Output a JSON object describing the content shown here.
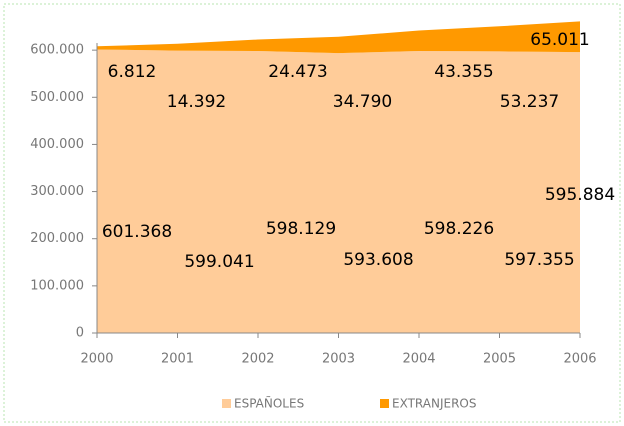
{
  "chart_data": {
    "type": "stacked_area",
    "x": [
      2000,
      2001,
      2002,
      2003,
      2004,
      2005,
      2006
    ],
    "xlim": [
      2000,
      2006
    ],
    "xticks": [
      2000,
      2001,
      2002,
      2003,
      2004,
      2005,
      2006
    ],
    "ylim": [
      0,
      700000
    ],
    "yticks": [
      0,
      {
        "value": 100000,
        "label": "100.000"
      },
      {
        "value": 200000,
        "label": "200.000"
      },
      {
        "value": 300000,
        "label": "300.000"
      },
      {
        "value": 400000,
        "label": "400.000"
      },
      {
        "value": 500000,
        "label": "500.000"
      },
      {
        "value": 600000,
        "label": "600.000"
      }
    ],
    "legend": "bottom",
    "series": [
      {
        "name": "ESPAÑOLES",
        "color": "#ffcc99",
        "values": [
          601368,
          599041,
          598129,
          593608,
          598226,
          597355,
          595884
        ],
        "value_labels": [
          "601.368",
          "599.041",
          "598.129",
          "593.608",
          "598.226",
          "597.355",
          "595.884"
        ]
      },
      {
        "name": "EXTRANJEROS",
        "color": "#ff9900",
        "values": [
          6812,
          14392,
          24473,
          34790,
          43355,
          53237,
          65011
        ],
        "value_labels": [
          "6.812",
          "14.392",
          "24.473",
          "34.790",
          "43.355",
          "53.237",
          "65.011"
        ]
      }
    ]
  }
}
